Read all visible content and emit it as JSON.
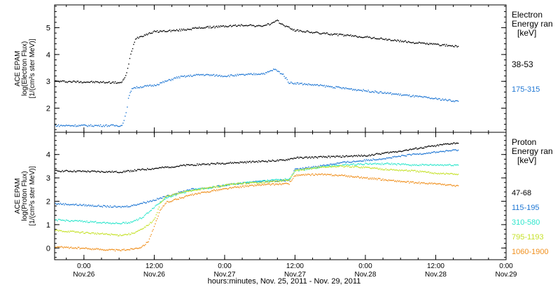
{
  "figure": {
    "xlabel": "hours:minutes, Nov. 25, 2011 - Nov. 29, 2011",
    "x_ticks": [
      {
        "t": 0,
        "time": "0:00",
        "date": "Nov.26"
      },
      {
        "t": 12,
        "time": "12:00",
        "date": "Nov.26"
      },
      {
        "t": 24,
        "time": "0:00",
        "date": "Nov.27"
      },
      {
        "t": 36,
        "time": "12:00",
        "date": "Nov.27"
      },
      {
        "t": 48,
        "time": "0:00",
        "date": "Nov.28"
      },
      {
        "t": 60,
        "time": "12:00",
        "date": "Nov.28"
      },
      {
        "t": 72,
        "time": "0:00",
        "date": "Nov.29"
      }
    ],
    "x_minor_every_hours": 3,
    "x_unit": "hours since 2011-11-26 00:00"
  },
  "chart_data": [
    {
      "type": "scatter",
      "panel": "electron",
      "ylabel_lines": [
        "ACE EPAM",
        "log(Electron Flux)",
        "[1/(cm²s ster MeV)]"
      ],
      "xlim": [
        -5,
        72
      ],
      "ylim": [
        1.1,
        5.85
      ],
      "y_ticks": [
        2,
        3,
        4,
        5
      ],
      "legend_title": [
        "Electron",
        "Energy ran",
        "[keV]"
      ],
      "series": [
        {
          "name": "38-53",
          "color": "#000000",
          "points": [
            [
              -5,
              3.0
            ],
            [
              6.5,
              2.95
            ],
            [
              7.3,
              3.3
            ],
            [
              8.0,
              4.0
            ],
            [
              8.8,
              4.6
            ],
            [
              10,
              4.7
            ],
            [
              12,
              4.85
            ],
            [
              16,
              4.9
            ],
            [
              20,
              5.0
            ],
            [
              24,
              5.05
            ],
            [
              28,
              5.1
            ],
            [
              30,
              5.05
            ],
            [
              32,
              5.15
            ],
            [
              33,
              5.25
            ],
            [
              34,
              5.1
            ],
            [
              36,
              4.9
            ],
            [
              40,
              4.8
            ],
            [
              48,
              4.65
            ],
            [
              56,
              4.45
            ],
            [
              64,
              4.3
            ]
          ]
        },
        {
          "name": "175-315",
          "color": "#1f77d4",
          "points": [
            [
              -5,
              1.35
            ],
            [
              6.5,
              1.35
            ],
            [
              7.2,
              1.8
            ],
            [
              7.6,
              2.35
            ],
            [
              8.2,
              2.75
            ],
            [
              10,
              2.8
            ],
            [
              12,
              2.85
            ],
            [
              16,
              3.15
            ],
            [
              20,
              3.25
            ],
            [
              24,
              3.2
            ],
            [
              28,
              3.25
            ],
            [
              31,
              3.3
            ],
            [
              32.5,
              3.45
            ],
            [
              34,
              3.25
            ],
            [
              35,
              2.95
            ],
            [
              40,
              2.85
            ],
            [
              48,
              2.65
            ],
            [
              56,
              2.45
            ],
            [
              64,
              2.25
            ]
          ]
        }
      ]
    },
    {
      "type": "scatter",
      "panel": "proton",
      "ylabel_lines": [
        "ACE EPAM",
        "log(Proton Flux)",
        "[1/(cm²s ster MeV)]"
      ],
      "xlim": [
        -5,
        72
      ],
      "ylim": [
        -0.5,
        4.95
      ],
      "y_ticks": [
        0,
        1,
        2,
        3,
        4
      ],
      "legend_title": [
        "Proton",
        "Energy ran",
        "[keV]"
      ],
      "series": [
        {
          "name": "47-68",
          "color": "#000000",
          "points": [
            [
              -5,
              3.3
            ],
            [
              6,
              3.25
            ],
            [
              10,
              3.35
            ],
            [
              14,
              3.45
            ],
            [
              18,
              3.55
            ],
            [
              22,
              3.6
            ],
            [
              26,
              3.65
            ],
            [
              30,
              3.7
            ],
            [
              34,
              3.75
            ],
            [
              36,
              3.85
            ],
            [
              42,
              3.9
            ],
            [
              48,
              3.95
            ],
            [
              54,
              4.15
            ],
            [
              58,
              4.3
            ],
            [
              62,
              4.45
            ],
            [
              64,
              4.5
            ]
          ]
        },
        {
          "name": "115-195",
          "color": "#1f77d4",
          "points": [
            [
              -5,
              1.9
            ],
            [
              6,
              1.75
            ],
            [
              8,
              1.8
            ],
            [
              12,
              2.05
            ],
            [
              14,
              2.2
            ],
            [
              18,
              2.5
            ],
            [
              22,
              2.6
            ],
            [
              26,
              2.75
            ],
            [
              30,
              2.85
            ],
            [
              35,
              2.9
            ],
            [
              36,
              3.35
            ],
            [
              40,
              3.5
            ],
            [
              44,
              3.65
            ],
            [
              48,
              3.75
            ],
            [
              52,
              3.85
            ],
            [
              56,
              4.0
            ],
            [
              60,
              4.1
            ],
            [
              64,
              4.2
            ]
          ]
        },
        {
          "name": "310-580",
          "color": "#2ee6cc",
          "points": [
            [
              -5,
              1.2
            ],
            [
              6,
              1.05
            ],
            [
              8,
              1.1
            ],
            [
              10,
              1.3
            ],
            [
              12,
              1.75
            ],
            [
              14,
              2.15
            ],
            [
              18,
              2.45
            ],
            [
              22,
              2.6
            ],
            [
              26,
              2.75
            ],
            [
              30,
              2.85
            ],
            [
              35,
              2.95
            ],
            [
              36,
              3.3
            ],
            [
              40,
              3.45
            ],
            [
              44,
              3.55
            ],
            [
              48,
              3.6
            ],
            [
              52,
              3.6
            ],
            [
              56,
              3.55
            ],
            [
              60,
              3.55
            ],
            [
              64,
              3.55
            ]
          ]
        },
        {
          "name": "795-1193",
          "color": "#c6e22c",
          "points": [
            [
              -5,
              0.75
            ],
            [
              6,
              0.55
            ],
            [
              8,
              0.6
            ],
            [
              10,
              0.8
            ],
            [
              12,
              1.2
            ],
            [
              13,
              1.9
            ],
            [
              14,
              2.2
            ],
            [
              18,
              2.45
            ],
            [
              22,
              2.6
            ],
            [
              26,
              2.75
            ],
            [
              30,
              2.8
            ],
            [
              35,
              2.9
            ],
            [
              36,
              3.3
            ],
            [
              40,
              3.45
            ],
            [
              44,
              3.5
            ],
            [
              48,
              3.45
            ],
            [
              52,
              3.35
            ],
            [
              56,
              3.3
            ],
            [
              60,
              3.2
            ],
            [
              64,
              3.15
            ]
          ]
        },
        {
          "name": "1060-1900",
          "color": "#f0901e",
          "points": [
            [
              -5,
              0.05
            ],
            [
              6,
              -0.1
            ],
            [
              8,
              -0.05
            ],
            [
              10,
              0.05
            ],
            [
              11,
              0.3
            ],
            [
              12,
              0.9
            ],
            [
              13,
              1.6
            ],
            [
              14,
              1.95
            ],
            [
              18,
              2.25
            ],
            [
              22,
              2.45
            ],
            [
              26,
              2.6
            ],
            [
              30,
              2.7
            ],
            [
              35,
              2.75
            ],
            [
              36,
              3.1
            ],
            [
              40,
              3.15
            ],
            [
              44,
              3.1
            ],
            [
              48,
              3.0
            ],
            [
              52,
              2.9
            ],
            [
              56,
              2.8
            ],
            [
              60,
              2.75
            ],
            [
              64,
              2.65
            ]
          ]
        }
      ]
    }
  ]
}
